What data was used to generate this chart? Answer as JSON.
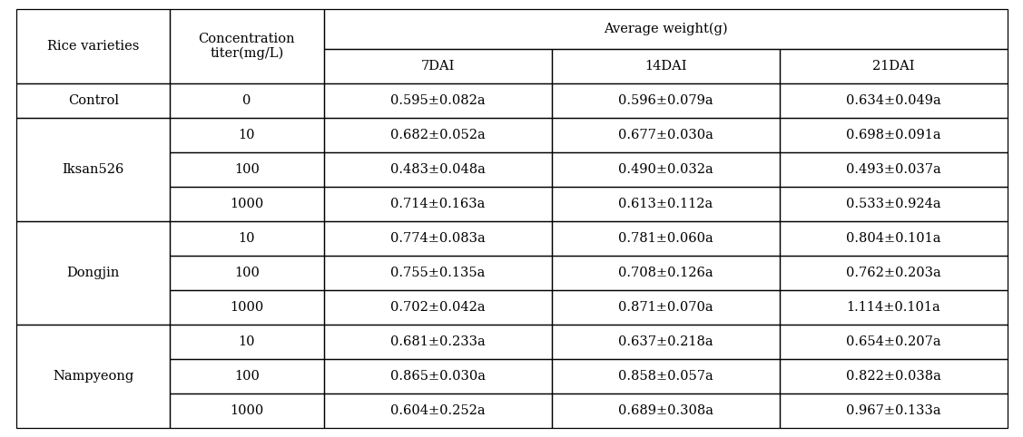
{
  "avg_weight_header": "Average weight(g)",
  "rows": [
    {
      "variety": "Control",
      "conc": "0",
      "d7": "0.595±0.082a",
      "d14": "0.596±0.079a",
      "d21": "0.634±0.049a"
    },
    {
      "variety": "Iksan526",
      "conc": "10",
      "d7": "0.682±0.052a",
      "d14": "0.677±0.030a",
      "d21": "0.698±0.091a"
    },
    {
      "variety": "",
      "conc": "100",
      "d7": "0.483±0.048a",
      "d14": "0.490±0.032a",
      "d21": "0.493±0.037a"
    },
    {
      "variety": "",
      "conc": "1000",
      "d7": "0.714±0.163a",
      "d14": "0.613±0.112a",
      "d21": "0.533±0.924a"
    },
    {
      "variety": "Dongjin",
      "conc": "10",
      "d7": "0.774±0.083a",
      "d14": "0.781±0.060a",
      "d21": "0.804±0.101a"
    },
    {
      "variety": "",
      "conc": "100",
      "d7": "0.755±0.135a",
      "d14": "0.708±0.126a",
      "d21": "0.762±0.203a"
    },
    {
      "variety": "",
      "conc": "1000",
      "d7": "0.702±0.042a",
      "d14": "0.871±0.070a",
      "d21": "1.114±0.101a"
    },
    {
      "variety": "Nampyeong",
      "conc": "10",
      "d7": "0.681±0.233a",
      "d14": "0.637±0.218a",
      "d21": "0.654±0.207a"
    },
    {
      "variety": "",
      "conc": "100",
      "d7": "0.865±0.030a",
      "d14": "0.858±0.057a",
      "d21": "0.822±0.038a"
    },
    {
      "variety": "",
      "conc": "1000",
      "d7": "0.604±0.252a",
      "d14": "0.689±0.308a",
      "d21": "0.967±0.133a"
    }
  ],
  "variety_groups": [
    {
      "name": "Control",
      "start": 0,
      "end": 1
    },
    {
      "name": "Iksan526",
      "start": 1,
      "end": 4
    },
    {
      "name": "Dongjin",
      "start": 4,
      "end": 7
    },
    {
      "name": "Nampyeong",
      "start": 7,
      "end": 10
    }
  ],
  "line_color": "#000000",
  "bg_color": "#ffffff",
  "text_color": "#000000",
  "font_size": 10.5,
  "header_font_size": 10.5
}
